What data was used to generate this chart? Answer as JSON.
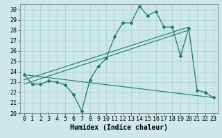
{
  "title": "",
  "xlabel": "Humidex (Indice chaleur)",
  "xlim": [
    -0.5,
    23.5
  ],
  "ylim": [
    20,
    30.5
  ],
  "xticks": [
    0,
    1,
    2,
    3,
    4,
    5,
    6,
    7,
    8,
    9,
    10,
    11,
    12,
    13,
    14,
    15,
    16,
    17,
    18,
    19,
    20,
    21,
    22,
    23
  ],
  "yticks": [
    20,
    21,
    22,
    23,
    24,
    25,
    26,
    27,
    28,
    29,
    30
  ],
  "background_color": "#cce8e8",
  "grid_color": "#aacccc",
  "line_color": "#1a7a6a",
  "series1_x": [
    0,
    1,
    2,
    3,
    4,
    5,
    6,
    7,
    8,
    9,
    10,
    11,
    12,
    13,
    14,
    15,
    16,
    17,
    18,
    19,
    20,
    21,
    22,
    23
  ],
  "series1_y": [
    23.7,
    22.8,
    22.8,
    23.1,
    23.0,
    22.7,
    21.8,
    20.2,
    23.2,
    24.5,
    25.3,
    27.4,
    28.7,
    28.7,
    30.3,
    29.4,
    29.8,
    28.3,
    28.3,
    25.5,
    28.2,
    22.2,
    22.0,
    21.5
  ],
  "series2_x": [
    0,
    23
  ],
  "series2_y": [
    23.7,
    21.5
  ],
  "series3_x": [
    0,
    20
  ],
  "series3_y": [
    23.2,
    28.3
  ],
  "series4_x": [
    0,
    20
  ],
  "series4_y": [
    22.8,
    28.0
  ],
  "font_family": "monospace",
  "xlabel_fontsize": 7,
  "tick_fontsize": 6
}
